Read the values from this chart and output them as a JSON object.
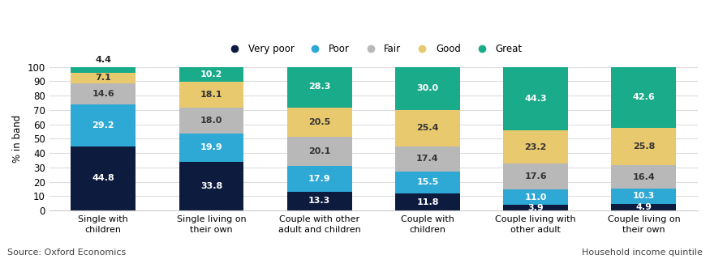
{
  "categories": [
    "Single with\nchildren",
    "Single living on\ntheir own",
    "Couple with other\nadult and children",
    "Couple with\nchildren",
    "Couple living with\nother adult",
    "Couple living on\ntheir own"
  ],
  "series": {
    "Very poor": [
      44.8,
      33.8,
      13.3,
      11.8,
      3.9,
      4.9
    ],
    "Poor": [
      29.2,
      19.9,
      17.9,
      15.5,
      11.0,
      10.3
    ],
    "Fair": [
      14.6,
      18.0,
      20.1,
      17.4,
      17.6,
      16.4
    ],
    "Good": [
      7.1,
      18.1,
      20.5,
      25.4,
      23.2,
      25.8
    ],
    "Great": [
      4.4,
      10.2,
      28.3,
      30.0,
      44.3,
      42.6
    ]
  },
  "colors": {
    "Very poor": "#0d1b3e",
    "Poor": "#2ea8d5",
    "Fair": "#b8b8b8",
    "Good": "#e8c96e",
    "Great": "#1aab8a"
  },
  "text_colors": {
    "Very poor": "white",
    "Poor": "white",
    "Fair": "#333333",
    "Good": "#333333",
    "Great": "white"
  },
  "legend_order": [
    "Very poor",
    "Poor",
    "Fair",
    "Good",
    "Great"
  ],
  "ylabel": "% in band",
  "ylim": [
    0,
    100
  ],
  "yticks": [
    0,
    10,
    20,
    30,
    40,
    50,
    60,
    70,
    80,
    90,
    100
  ],
  "source_text": "Source: Oxford Economics",
  "right_text": "Household income quintile",
  "bar_width": 0.6,
  "above_bar_label_bar": 0,
  "above_bar_label_series": "Great"
}
